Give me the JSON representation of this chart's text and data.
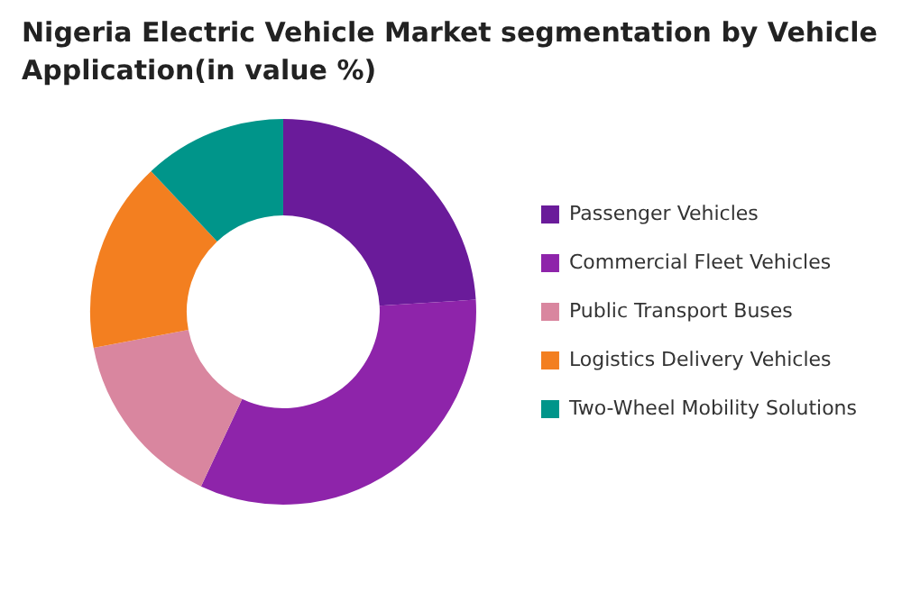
{
  "chart_data": {
    "type": "donut",
    "title": "Nigeria Electric Vehicle Market segmentation by Vehicle Application(in value %)",
    "categories": [
      "Passenger Vehicles",
      "Commercial Fleet Vehicles",
      "Public Transport Buses",
      "Logistics Delivery Vehicles",
      "Two-Wheel Mobility Solutions"
    ],
    "values": [
      24,
      33,
      15,
      16,
      12
    ],
    "colors": [
      "#6a1b9a",
      "#8e24aa",
      "#d9869f",
      "#f37f20",
      "#00958a"
    ],
    "legend": "right"
  }
}
